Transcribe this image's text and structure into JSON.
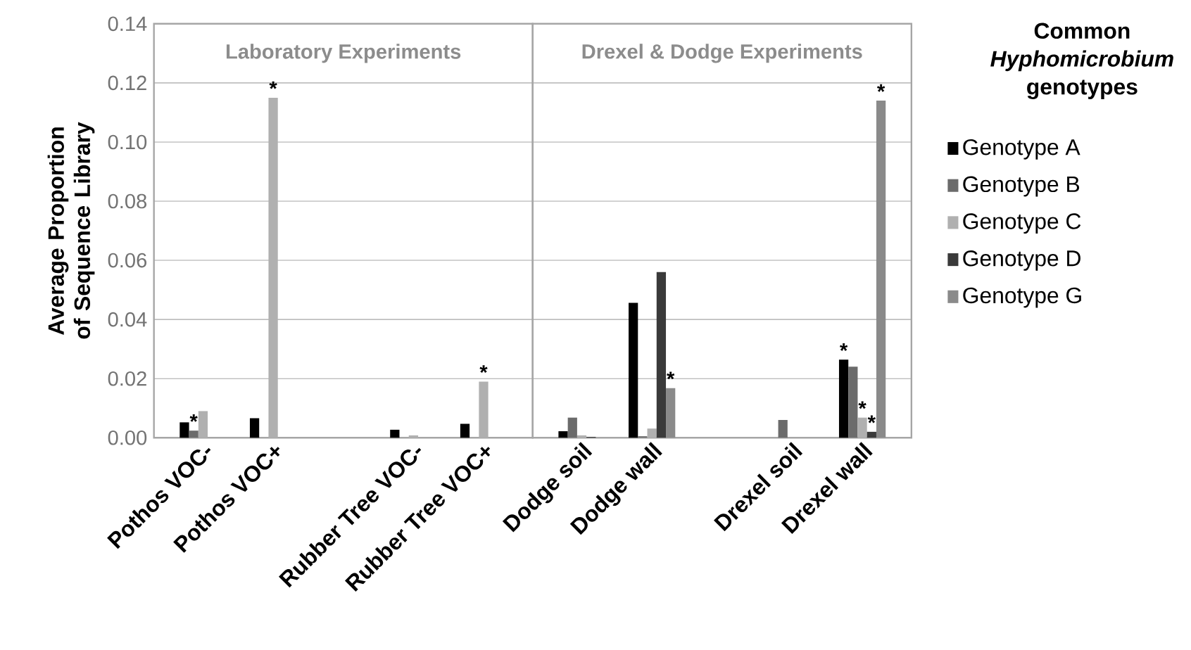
{
  "chart_data": [
    {
      "type": "bar",
      "title": "Laboratory Experiments",
      "ylabel": "Average Proportion of Sequence Library",
      "categories": [
        "Pothos VOC-",
        "Pothos VOC+",
        null,
        "Rubber Tree  VOC-",
        "Rubber Tree  VOC+"
      ],
      "series": [
        {
          "color": "#000000",
          "values": [
            0.0052,
            0.0066,
            null,
            0.0027,
            0.0047
          ]
        },
        {
          "color": "#6b6b6b",
          "values": [
            0.0024,
            null,
            null,
            null,
            null
          ],
          "value_labels": [
            "*",
            null,
            null,
            null,
            null
          ]
        },
        {
          "color": "#b0b0b0",
          "values": [
            0.009,
            0.115,
            null,
            0.0008,
            0.019
          ],
          "value_labels": [
            null,
            "*",
            null,
            null,
            "*"
          ]
        },
        {
          "color": "#3a3a3a",
          "values": [
            null,
            null,
            null,
            null,
            null
          ]
        },
        {
          "color": "#8a8a8a",
          "values": [
            null,
            null,
            null,
            null,
            null
          ]
        }
      ],
      "ylim": [
        0,
        0.14
      ],
      "yticks": [
        {
          "value": 0,
          "label": "0.00"
        },
        {
          "value": 0.02,
          "label": "0.02"
        },
        {
          "value": 0.04,
          "label": "0.04"
        },
        {
          "value": 0.06,
          "label": "0.06"
        },
        {
          "value": 0.08,
          "label": "0.08"
        },
        {
          "value": 0.1,
          "label": "0.10"
        },
        {
          "value": 0.12,
          "label": "0.12"
        },
        {
          "value": 0.14,
          "label": "0.14"
        }
      ],
      "grid": "y"
    },
    {
      "type": "bar",
      "title": "Drexel & Dodge Experiments",
      "legend_title": "Common *Hyphomicrobium* genotypes",
      "categories": [
        "Dodge soil",
        "Dodge wall",
        null,
        "Drexel soil",
        "Drexel wall"
      ],
      "series": [
        {
          "name": "Genotype A",
          "color": "#000000",
          "values": [
            0.0022,
            0.0456,
            null,
            null,
            0.0264
          ],
          "value_labels": [
            null,
            null,
            null,
            null,
            "*"
          ]
        },
        {
          "name": "Genotype B",
          "color": "#6b6b6b",
          "values": [
            0.0068,
            0.0005,
            null,
            0.006,
            0.024
          ]
        },
        {
          "name": "Genotype C",
          "color": "#b0b0b0",
          "values": [
            0.0008,
            0.0031,
            null,
            null,
            0.0068
          ],
          "value_labels": [
            null,
            null,
            null,
            null,
            "*"
          ]
        },
        {
          "name": "Genotype D",
          "color": "#3a3a3a",
          "values": [
            0.0003,
            0.056,
            null,
            null,
            0.002
          ],
          "value_labels": [
            null,
            null,
            null,
            null,
            "*"
          ]
        },
        {
          "name": "Genotype G",
          "color": "#8a8a8a",
          "values": [
            null,
            0.0168,
            null,
            null,
            0.114
          ],
          "value_labels": [
            null,
            "*",
            null,
            null,
            "*"
          ]
        }
      ],
      "ylim": [
        0,
        0.14
      ],
      "yticks": [
        0,
        0.02,
        0.04,
        0.06,
        0.08,
        0.1,
        0.12,
        0.14
      ],
      "tick_labels": "x",
      "grid": "y",
      "legend": "right"
    }
  ]
}
